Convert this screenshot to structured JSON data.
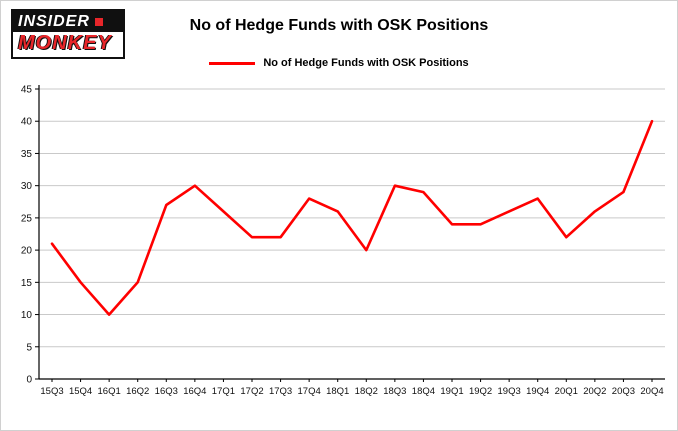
{
  "logo": {
    "line1": "INSIDER",
    "line2": "MONKEY"
  },
  "title": "No of Hedge Funds with OSK Positions",
  "legend": {
    "label": "No of Hedge Funds with OSK Positions",
    "color": "#ff0000"
  },
  "chart_data": {
    "type": "line",
    "title": "No of Hedge Funds with OSK Positions",
    "categories": [
      "15Q3",
      "15Q4",
      "16Q1",
      "16Q2",
      "16Q3",
      "16Q4",
      "17Q1",
      "17Q2",
      "17Q3",
      "17Q4",
      "18Q1",
      "18Q2",
      "18Q3",
      "18Q4",
      "19Q1",
      "19Q2",
      "19Q3",
      "19Q4",
      "20Q1",
      "20Q2",
      "20Q3",
      "20Q4"
    ],
    "series": [
      {
        "name": "No of Hedge Funds with OSK Positions",
        "color": "#ff0000",
        "values": [
          21,
          15,
          10,
          15,
          27,
          30,
          26,
          22,
          22,
          28,
          26,
          20,
          30,
          29,
          24,
          24,
          26,
          28,
          22,
          26,
          29,
          40
        ]
      }
    ],
    "xlabel": "",
    "ylabel": "",
    "ylim": [
      0,
      45
    ],
    "ytick_step": 5,
    "grid": true,
    "legend_position": "top"
  }
}
